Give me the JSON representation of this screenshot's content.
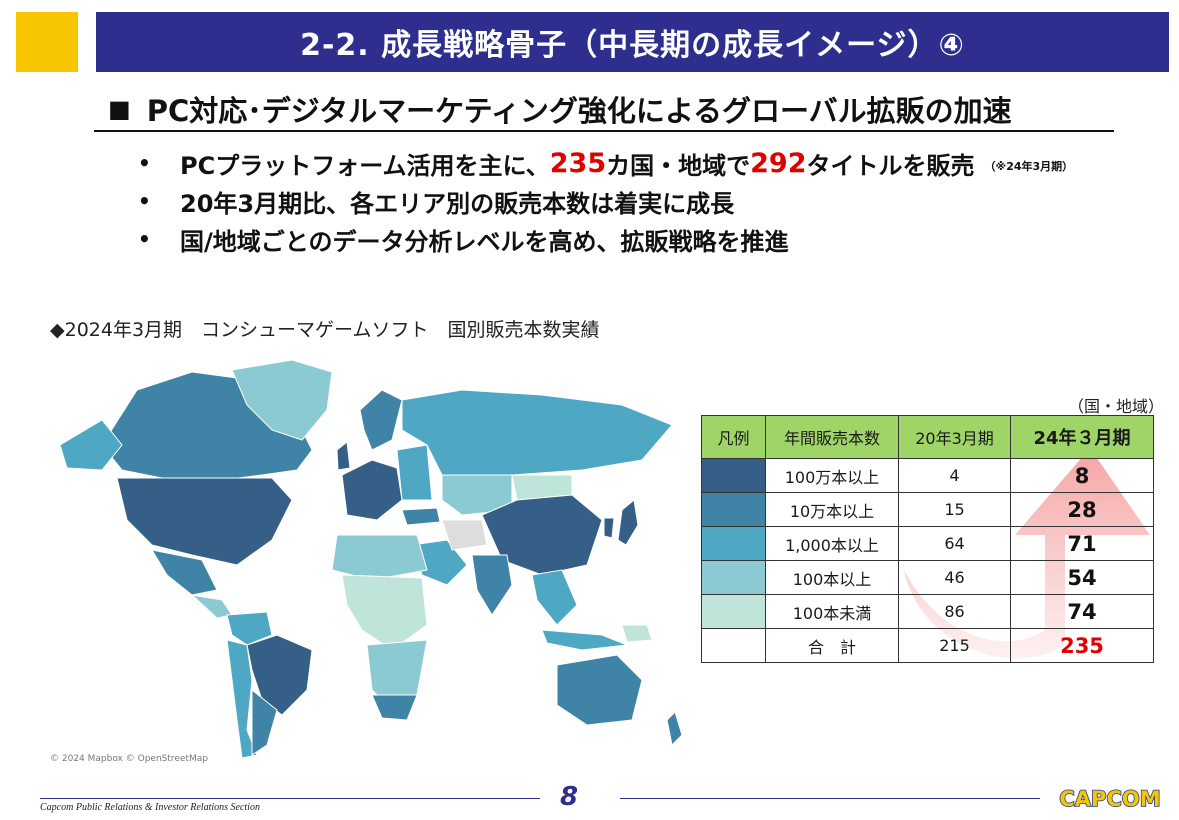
{
  "slide": {
    "title": "2-2.  成長戦略骨子（中長期の成長イメージ）④",
    "headline_marker": "■",
    "headline": "PC対応･デジタルマーケティング強化によるグローバル拡販の加速"
  },
  "bullets": [
    {
      "marker": "•",
      "pre": "PCプラットフォーム活用を主に、",
      "num1": "235",
      "mid": "カ国・地域で",
      "num2": "292",
      "post": "タイトルを販売",
      "note": "（※24年3月期）"
    },
    {
      "marker": "•",
      "text": "20年3月期比、各エリア別の販売本数は着実に成長"
    },
    {
      "marker": "•",
      "text": "国/地域ごとのデータ分析レベルを高め、拡販戦略を推進"
    }
  ],
  "map": {
    "caption": "◆2024年3月期　コンシューマゲームソフト　国別販売本数実績",
    "credit": "© 2024 Mapbox © OpenStreetMap",
    "colors": {
      "tier1": "#365f87",
      "tier2": "#3f83a6",
      "tier3": "#4ea7c3",
      "tier4": "#8ccad3",
      "tier5": "#bfe4d9",
      "none": "#dddddd"
    }
  },
  "table": {
    "unit": "（国・地域）",
    "headers": [
      "凡例",
      "年間販売本数",
      "20年3月期",
      "24年３月期"
    ],
    "rows": [
      {
        "range": "100万本以上",
        "fy20": "4",
        "fy24": "8",
        "color": "#365f87"
      },
      {
        "range": "10万本以上",
        "fy20": "15",
        "fy24": "28",
        "color": "#3f83a6"
      },
      {
        "range": "1,000本以上",
        "fy20": "64",
        "fy24": "71",
        "color": "#4ea7c3"
      },
      {
        "range": "100本以上",
        "fy20": "46",
        "fy24": "54",
        "color": "#8ccad3"
      },
      {
        "range": "100本未満",
        "fy20": "86",
        "fy24": "74",
        "color": "#bfe4d9"
      }
    ],
    "total": {
      "label": "合　計",
      "fy20": "215",
      "fy24": "235"
    }
  },
  "footer": {
    "text": "Capcom Public Relations & Investor Relations Section",
    "page": "8",
    "logo": "CAPCOM"
  },
  "colors": {
    "accent_blue": "#2e2e8f",
    "accent_yellow": "#f7c600",
    "highlight_red": "#e10000",
    "table_header_green": "#9fd468"
  }
}
